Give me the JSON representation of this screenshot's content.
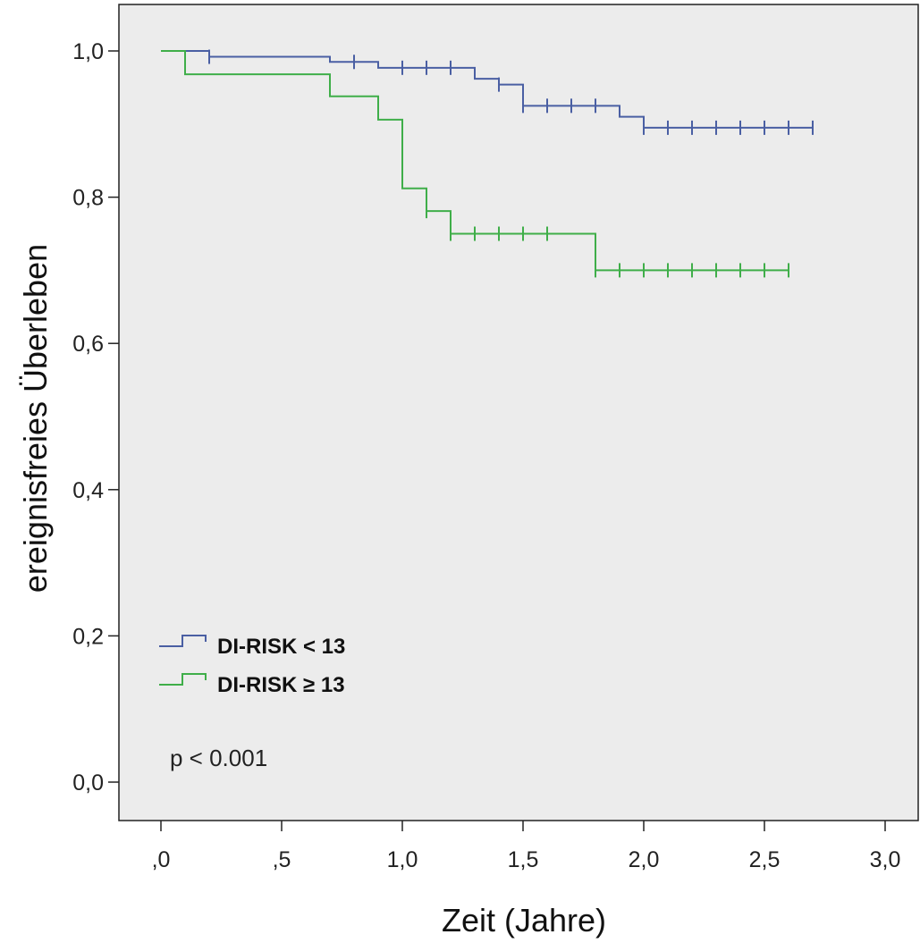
{
  "chart_data": {
    "type": "line",
    "step": true,
    "xlabel": "Zeit (Jahre)",
    "ylabel": "ereignisfreies Überleben",
    "xlim": [
      0,
      3.0
    ],
    "ylim": [
      0,
      1.0
    ],
    "xticks": [
      0,
      0.5,
      1.0,
      1.5,
      2.0,
      2.5,
      3.0
    ],
    "xtick_labels": [
      ",0",
      ",5",
      "1,0",
      "1,5",
      "2,0",
      "2,5",
      "3,0"
    ],
    "yticks": [
      0,
      0.2,
      0.4,
      0.6,
      0.8,
      1.0
    ],
    "ytick_labels": [
      "0,0",
      "0,2",
      "0,4",
      "0,6",
      "0,8",
      "1,0"
    ],
    "grid": false,
    "legend_position": "bottom-left",
    "annotation": "p < 0.001",
    "series": [
      {
        "name": "DI-RISK < 13",
        "color": "#4a5fa3",
        "steps": [
          [
            0,
            1.0
          ],
          [
            0.2,
            0.992
          ],
          [
            0.7,
            0.985
          ],
          [
            0.9,
            0.977
          ],
          [
            1.3,
            0.962
          ],
          [
            1.4,
            0.954
          ],
          [
            1.5,
            0.925
          ],
          [
            1.9,
            0.91
          ],
          [
            2.0,
            0.895
          ]
        ],
        "end": 2.7,
        "censored": [
          0.2,
          0.8,
          1.0,
          1.1,
          1.2,
          1.4,
          1.5,
          1.6,
          1.7,
          1.8,
          2.0,
          2.1,
          2.2,
          2.3,
          2.4,
          2.5,
          2.6,
          2.7
        ]
      },
      {
        "name": "DI-RISK ≥ 13",
        "color": "#3fae49",
        "steps": [
          [
            0,
            1.0
          ],
          [
            0.1,
            0.968
          ],
          [
            0.7,
            0.938
          ],
          [
            0.9,
            0.906
          ],
          [
            1.0,
            0.812
          ],
          [
            1.1,
            0.781
          ],
          [
            1.2,
            0.75
          ],
          [
            1.8,
            0.7
          ]
        ],
        "end": 2.6,
        "censored": [
          1.1,
          1.2,
          1.3,
          1.4,
          1.5,
          1.6,
          1.8,
          1.9,
          2.0,
          2.1,
          2.2,
          2.3,
          2.4,
          2.5,
          2.6
        ]
      }
    ]
  }
}
